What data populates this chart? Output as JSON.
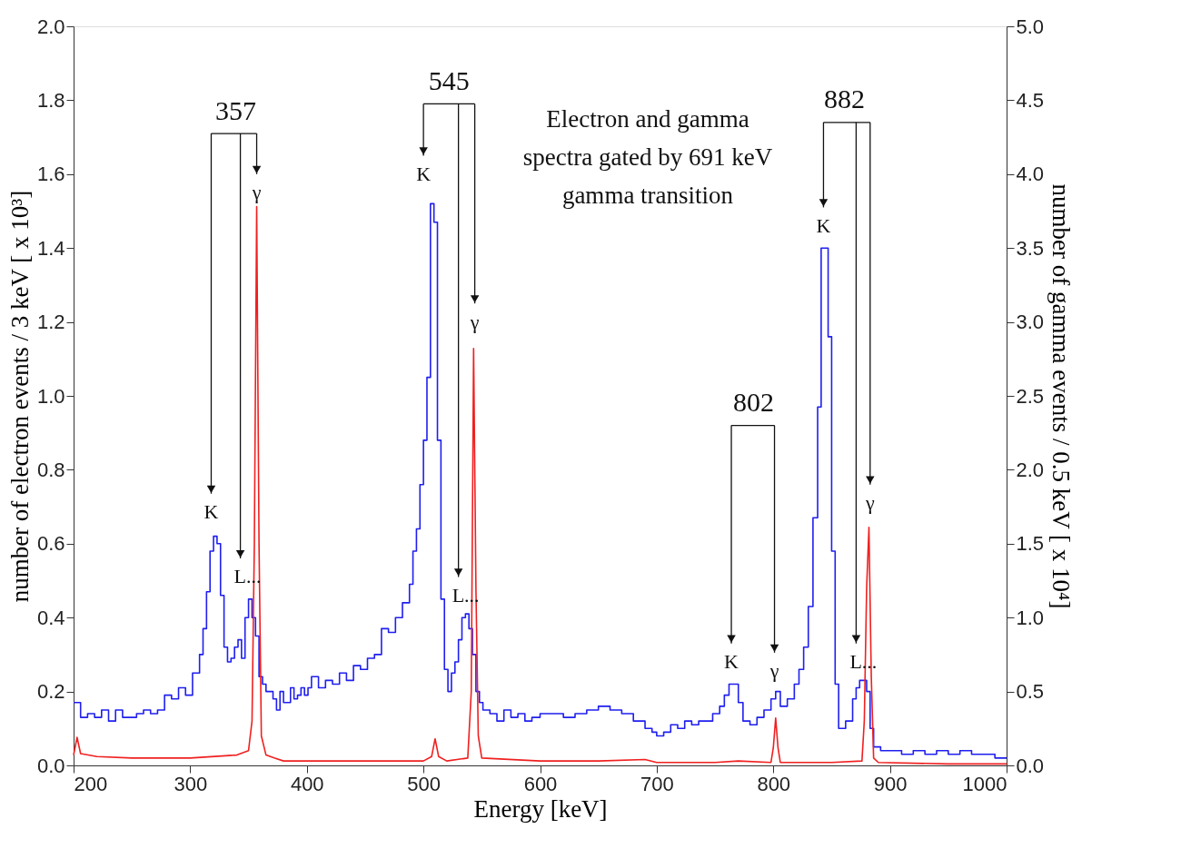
{
  "chart_data": {
    "type": "line",
    "xlabel": "Energy [keV]",
    "ylabel": "number of electron events / 3 keV [ x 10³]",
    "y2label": "number of gamma events / 0.5 keV [ x 10⁴]",
    "xlim": [
      200,
      1000
    ],
    "xticks": [
      200,
      300,
      400,
      500,
      600,
      700,
      800,
      900,
      1000
    ],
    "ylim": [
      0,
      2
    ],
    "yticks": [
      {
        "value": 0,
        "label": "0.0"
      },
      {
        "value": 0.2,
        "label": "0.2"
      },
      {
        "value": 0.4,
        "label": "0.4"
      },
      {
        "value": 0.6,
        "label": "0.6"
      },
      {
        "value": 0.8,
        "label": "0.8"
      },
      {
        "value": 1,
        "label": "1.0"
      },
      {
        "value": 1.2,
        "label": "1.2"
      },
      {
        "value": 1.4,
        "label": "1.4"
      },
      {
        "value": 1.6,
        "label": "1.6"
      },
      {
        "value": 1.8,
        "label": "1.8"
      },
      {
        "value": 2,
        "label": "2.0"
      }
    ],
    "y2lim": [
      0,
      5
    ],
    "y2ticks": [
      {
        "value": 0,
        "label": "0.0"
      },
      {
        "value": 0.5,
        "label": "0.5"
      },
      {
        "value": 1,
        "label": "1.0"
      },
      {
        "value": 1.5,
        "label": "1.5"
      },
      {
        "value": 2,
        "label": "2.0"
      },
      {
        "value": 2.5,
        "label": "2.5"
      },
      {
        "value": 3,
        "label": "3.0"
      },
      {
        "value": 3.5,
        "label": "3.5"
      },
      {
        "value": 4,
        "label": "4.0"
      },
      {
        "value": 4.5,
        "label": "4.5"
      },
      {
        "value": 5,
        "label": "5.0"
      }
    ],
    "grid": false,
    "marker": "none",
    "line_style": "solid",
    "series": [
      {
        "type": "step",
        "color": "#1f1fef",
        "x": [
          200,
          206,
          212,
          218,
          224,
          230,
          236,
          242,
          248,
          254,
          260,
          266,
          272,
          278,
          284,
          290,
          296,
          302,
          308,
          311,
          314,
          317,
          320,
          323,
          326,
          329,
          332,
          335,
          338,
          341,
          344,
          347,
          350,
          353,
          356,
          359,
          362,
          365,
          368,
          371,
          374,
          377,
          380,
          383,
          386,
          389,
          392,
          395,
          398,
          401,
          404,
          410,
          416,
          422,
          428,
          434,
          440,
          446,
          452,
          458,
          464,
          470,
          476,
          482,
          488,
          491,
          494,
          497,
          500,
          503,
          506,
          509,
          512,
          515,
          518,
          521,
          524,
          527,
          530,
          533,
          536,
          539,
          542,
          545,
          548,
          551,
          557,
          563,
          569,
          575,
          581,
          587,
          593,
          600,
          610,
          620,
          630,
          640,
          650,
          660,
          670,
          680,
          690,
          696,
          700,
          706,
          712,
          718,
          724,
          730,
          736,
          742,
          748,
          754,
          758,
          762,
          766,
          770,
          774,
          780,
          786,
          792,
          798,
          802,
          806,
          812,
          818,
          822,
          826,
          830,
          834,
          838,
          841,
          844,
          847,
          850,
          853,
          856,
          862,
          868,
          871,
          874,
          877,
          880,
          883,
          886,
          892,
          900,
          910,
          920,
          930,
          940,
          950,
          960,
          970,
          980,
          990,
          1000
        ],
        "values": [
          0.17,
          0.13,
          0.14,
          0.13,
          0.15,
          0.12,
          0.15,
          0.13,
          0.13,
          0.14,
          0.15,
          0.14,
          0.15,
          0.19,
          0.18,
          0.21,
          0.19,
          0.25,
          0.3,
          0.37,
          0.47,
          0.58,
          0.62,
          0.6,
          0.46,
          0.32,
          0.28,
          0.29,
          0.32,
          0.34,
          0.29,
          0.4,
          0.45,
          0.4,
          0.35,
          0.24,
          0.22,
          0.2,
          0.2,
          0.18,
          0.15,
          0.2,
          0.17,
          0.17,
          0.21,
          0.18,
          0.19,
          0.21,
          0.19,
          0.21,
          0.24,
          0.21,
          0.23,
          0.22,
          0.25,
          0.23,
          0.27,
          0.26,
          0.29,
          0.3,
          0.37,
          0.36,
          0.4,
          0.44,
          0.49,
          0.58,
          0.64,
          0.76,
          0.88,
          1.05,
          1.52,
          1.47,
          0.88,
          0.45,
          0.26,
          0.2,
          0.25,
          0.28,
          0.34,
          0.4,
          0.41,
          0.37,
          0.3,
          0.2,
          0.17,
          0.15,
          0.14,
          0.12,
          0.15,
          0.13,
          0.14,
          0.12,
          0.13,
          0.14,
          0.14,
          0.13,
          0.14,
          0.15,
          0.16,
          0.15,
          0.14,
          0.12,
          0.1,
          0.09,
          0.08,
          0.09,
          0.11,
          0.1,
          0.12,
          0.11,
          0.12,
          0.12,
          0.14,
          0.16,
          0.19,
          0.22,
          0.22,
          0.17,
          0.12,
          0.11,
          0.13,
          0.15,
          0.18,
          0.2,
          0.16,
          0.18,
          0.22,
          0.26,
          0.32,
          0.43,
          0.67,
          0.97,
          1.4,
          1.4,
          1.16,
          0.58,
          0.22,
          0.1,
          0.12,
          0.18,
          0.21,
          0.23,
          0.23,
          0.2,
          0.1,
          0.05,
          0.04,
          0.04,
          0.03,
          0.04,
          0.03,
          0.04,
          0.03,
          0.04,
          0.03,
          0.03,
          0.02,
          0.02
        ]
      },
      {
        "axis": "y2",
        "color": "#f02020",
        "x": [
          200,
          203,
          206,
          220,
          250,
          300,
          340,
          350,
          353,
          355,
          357,
          359,
          361,
          365,
          372,
          380,
          400,
          450,
          500,
          507,
          510,
          513,
          520,
          538,
          541,
          543,
          545,
          547,
          550,
          600,
          650,
          690,
          700,
          750,
          770,
          798,
          800,
          802,
          804,
          806,
          850,
          876,
          878,
          880,
          882,
          884,
          886,
          890,
          950,
          1000
        ],
        "values": [
          0.07,
          0.19,
          0.08,
          0.06,
          0.05,
          0.05,
          0.07,
          0.1,
          0.3,
          1.5,
          3.78,
          1.5,
          0.2,
          0.07,
          0.05,
          0.03,
          0.03,
          0.03,
          0.03,
          0.06,
          0.18,
          0.06,
          0.03,
          0.05,
          0.5,
          2.82,
          1.2,
          0.2,
          0.05,
          0.03,
          0.03,
          0.04,
          0.02,
          0.02,
          0.03,
          0.02,
          0.12,
          0.32,
          0.12,
          0.02,
          0.02,
          0.03,
          0.3,
          1.2,
          1.61,
          0.6,
          0.05,
          0.02,
          0.01,
          0.01
        ]
      }
    ],
    "annotations": [
      "Electron and gamma\nspectra gated by 691 keV\ngamma transition",
      "357",
      "K",
      "L...",
      "γ",
      "545",
      "K",
      "L...",
      "γ",
      "802",
      "K",
      "γ",
      "882",
      "K",
      "L...",
      "γ"
    ]
  }
}
